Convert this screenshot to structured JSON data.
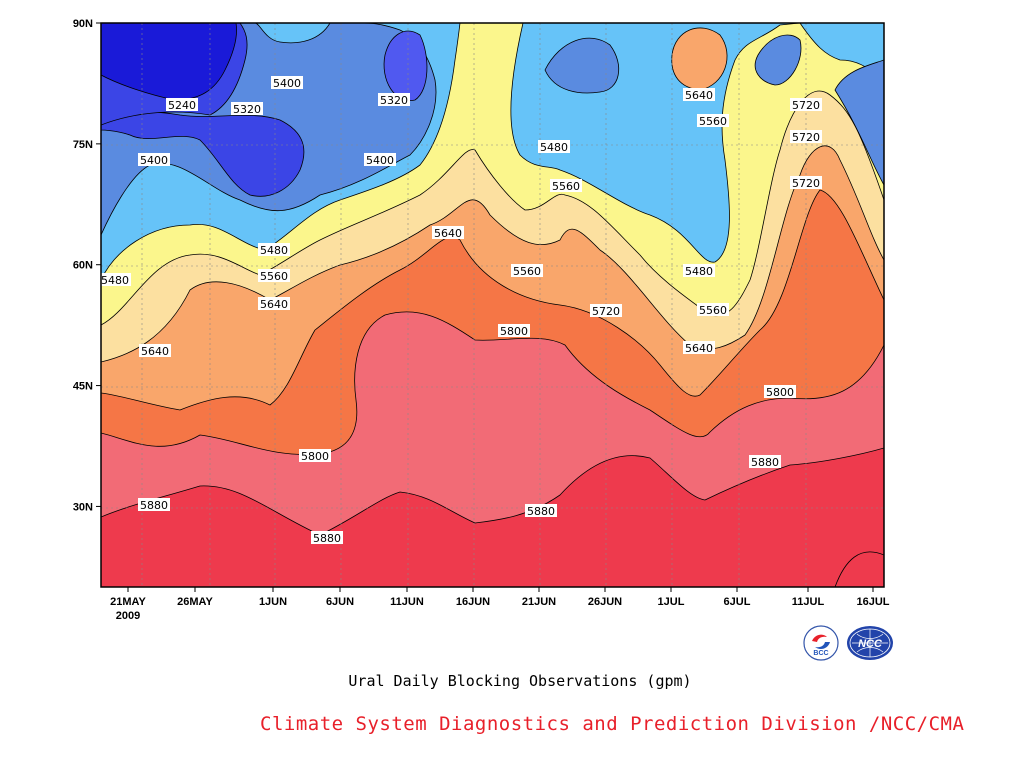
{
  "caption": "Ural Daily Blocking Observations (gpm)",
  "credit": "Climate System Diagnostics and Prediction Division /NCC/CMA",
  "logos": {
    "left_logo_text": "BCC",
    "right_logo_text": "NCC"
  },
  "chart_data": {
    "type": "heatmap",
    "title": "",
    "xlabel": "",
    "ylabel": "",
    "x_ticks": [
      "21MAY",
      "26MAY",
      "1JUN",
      "6JUN",
      "11JUN",
      "16JUN",
      "21JUN",
      "26JUN",
      "1JUL",
      "6JUL",
      "11JUL",
      "16JUL"
    ],
    "x_tick_year": "2009",
    "x_range": [
      "2009-05-20",
      "2009-07-17"
    ],
    "y_ticks": [
      "30N",
      "45N",
      "60N",
      "75N",
      "90N"
    ],
    "ylim": [
      20,
      90
    ],
    "grid": true,
    "contour_levels": [
      5240,
      5320,
      5400,
      5480,
      5560,
      5640,
      5720,
      5800,
      5880
    ],
    "level_colors": {
      "below_5240": "#1a1ad8",
      "5240": "#3b45e6",
      "5320": "#5059f0",
      "5400": "#5a8be0",
      "5480": "#66c3f8",
      "5560": "#fbf68c",
      "5640": "#fce0a0",
      "5720": "#f9a66b",
      "5800": "#f57646",
      "5880": "#f26b76",
      "above_5880": "#ee3a4d"
    },
    "contour_labels": [
      "5240",
      "5320",
      "5400",
      "5320",
      "5400",
      "5400",
      "5480",
      "5560",
      "5640",
      "5560",
      "5720",
      "5480",
      "5560",
      "5640",
      "5480",
      "5560",
      "5640",
      "5720",
      "5480",
      "5560",
      "5640",
      "5720",
      "5800",
      "5720",
      "5800",
      "5640",
      "5880",
      "5800",
      "5880",
      "5880",
      "5880"
    ]
  }
}
